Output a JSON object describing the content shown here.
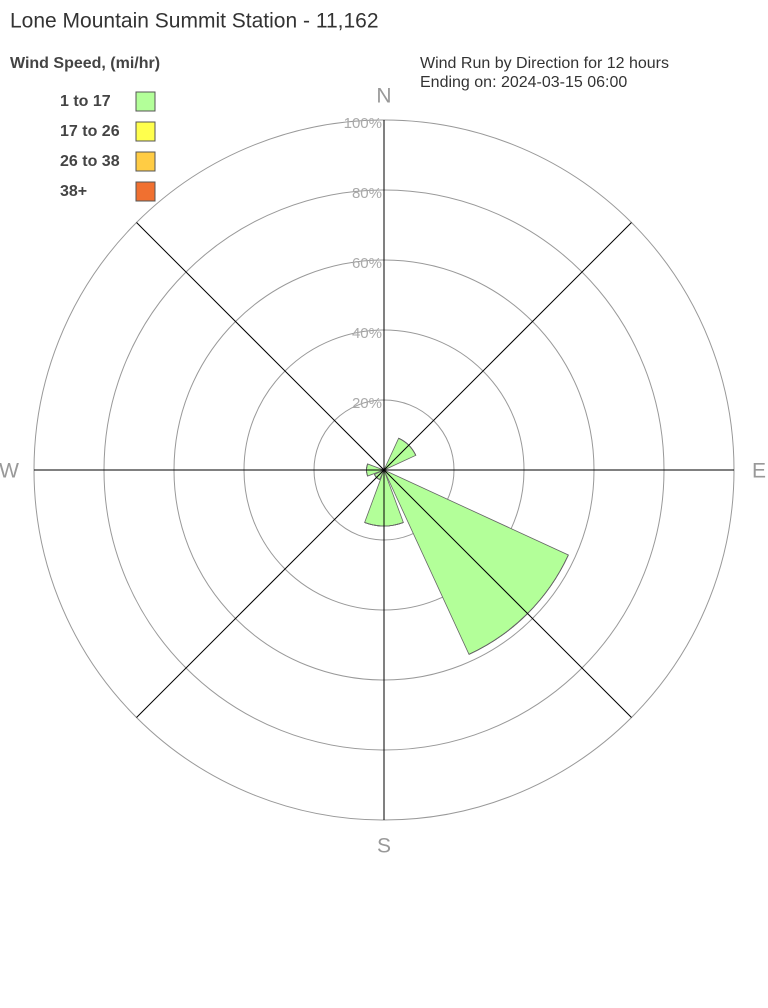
{
  "chart_data": {
    "type": "windrose",
    "title": "Lone Mountain Summit Station - 11,162",
    "legend_title": "Wind Speed, (mi/hr)",
    "subtitle": [
      "Wind Run by Direction for 12 hours",
      "Ending on: 2024-03-15 06:00"
    ],
    "categories": [
      "N",
      null,
      "E",
      null,
      "S",
      null,
      "W",
      null
    ],
    "series": [
      {
        "name": "1 to 17",
        "color": "#b3ff99",
        "values": [
          0,
          10,
          0,
          58,
          16,
          3,
          5,
          0
        ]
      },
      {
        "name": "17 to 26",
        "color": "#ffff4d",
        "values": [
          0,
          0,
          0,
          0,
          0,
          0,
          0,
          0
        ]
      },
      {
        "name": "26 to 38",
        "color": "#ffcc44",
        "values": [
          0,
          0,
          0,
          0,
          0,
          0,
          0,
          0
        ]
      },
      {
        "name": "38+",
        "color": "#f07030",
        "values": [
          0,
          0,
          0,
          0,
          0,
          0,
          0,
          0
        ]
      }
    ],
    "rlim": [
      0,
      100
    ],
    "rticks": [
      {
        "value": 20,
        "label": "20%"
      },
      {
        "value": 40,
        "label": "40%"
      },
      {
        "value": 60,
        "label": "60%"
      },
      {
        "value": 80,
        "label": "80%"
      },
      {
        "value": 100,
        "label": "100%"
      }
    ],
    "grid": true
  }
}
